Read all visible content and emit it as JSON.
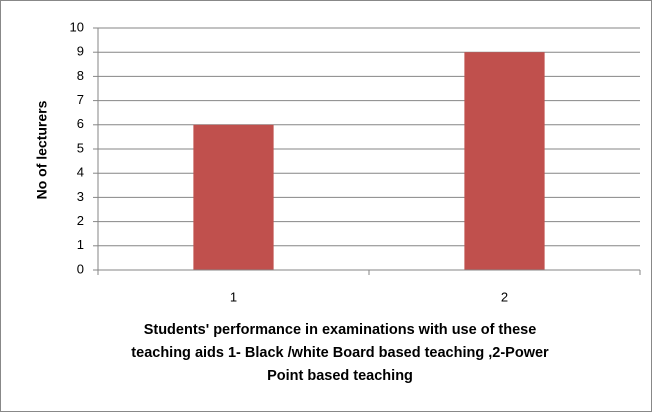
{
  "chart_data": {
    "type": "bar",
    "categories": [
      "1",
      "2"
    ],
    "values": [
      6,
      9
    ],
    "color": "#c0504d",
    "ylim": [
      0,
      10
    ],
    "yticks": [
      0,
      1,
      2,
      3,
      4,
      5,
      6,
      7,
      8,
      9,
      10
    ],
    "grid": true,
    "y_label": "No of lecturers",
    "x_label": "Students' performance in examinations with use of these teaching aids 1- Black /white Board based teaching ,2-Power Point based teaching"
  }
}
